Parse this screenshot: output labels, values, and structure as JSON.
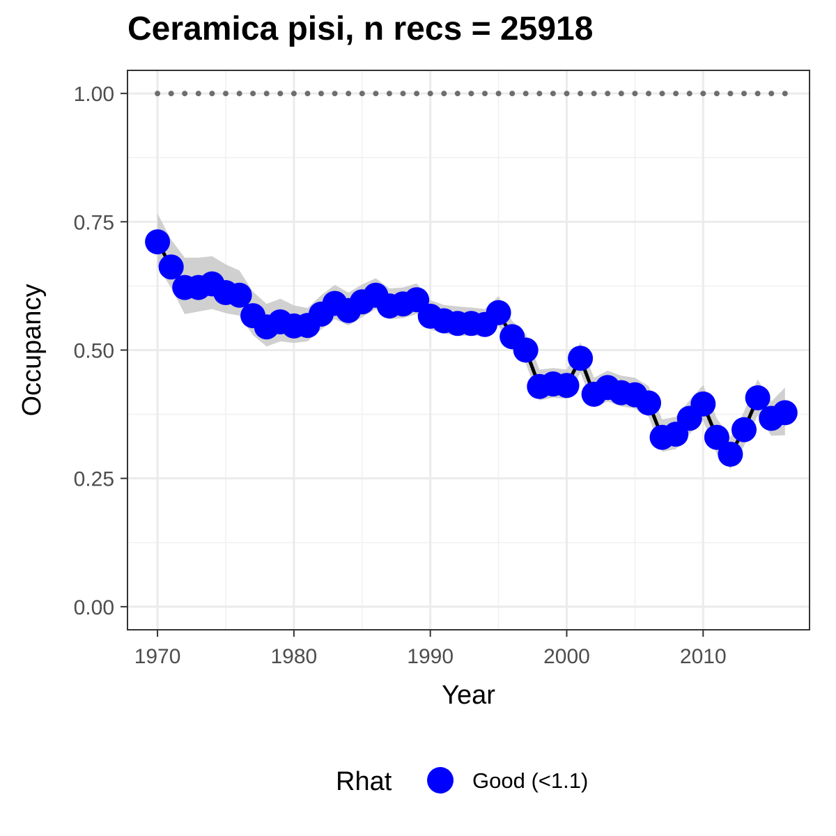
{
  "chart_data": {
    "type": "line",
    "title": "Ceramica pisi, n recs = 25918",
    "xlabel": "Year",
    "ylabel": "Occupancy",
    "xlim": [
      1967.8,
      2017.8
    ],
    "ylim": [
      -0.045,
      1.045
    ],
    "x_ticks": [
      1970,
      1980,
      1990,
      2000,
      2010
    ],
    "x_tick_labels": [
      "1970",
      "1980",
      "1990",
      "2000",
      "2010"
    ],
    "y_ticks": [
      0,
      0.25,
      0.5,
      0.75,
      1.0
    ],
    "y_tick_labels": [
      "0.00",
      "0.25",
      "0.50",
      "0.75",
      "1.00"
    ],
    "grid": true,
    "legend": {
      "title": "Rhat",
      "position": "bottom",
      "entries": [
        "Good (<1.1)"
      ]
    },
    "colors": {
      "points": "#0000ff",
      "line": "#000000",
      "ribbon": "#c8c8c8",
      "reference": "#6e6e6e"
    },
    "years": [
      1970,
      1971,
      1972,
      1973,
      1974,
      1975,
      1976,
      1977,
      1978,
      1979,
      1980,
      1981,
      1982,
      1983,
      1984,
      1985,
      1986,
      1987,
      1988,
      1989,
      1990,
      1991,
      1992,
      1993,
      1994,
      1995,
      1996,
      1997,
      1998,
      1999,
      2000,
      2001,
      2002,
      2003,
      2004,
      2005,
      2006,
      2007,
      2008,
      2009,
      2010,
      2011,
      2012,
      2013,
      2014,
      2015,
      2016
    ],
    "series": [
      {
        "name": "Good (<1.1)",
        "values": [
          0.711,
          0.662,
          0.622,
          0.622,
          0.629,
          0.612,
          0.607,
          0.567,
          0.545,
          0.555,
          0.547,
          0.548,
          0.57,
          0.591,
          0.577,
          0.594,
          0.607,
          0.586,
          0.59,
          0.598,
          0.566,
          0.557,
          0.552,
          0.552,
          0.55,
          0.573,
          0.526,
          0.5,
          0.429,
          0.434,
          0.431,
          0.484,
          0.414,
          0.427,
          0.417,
          0.413,
          0.397,
          0.33,
          0.336,
          0.367,
          0.395,
          0.33,
          0.297,
          0.345,
          0.407,
          0.367,
          0.378
        ],
        "lower": [
          0.663,
          0.621,
          0.57,
          0.575,
          0.58,
          0.572,
          0.567,
          0.529,
          0.507,
          0.517,
          0.514,
          0.517,
          0.54,
          0.56,
          0.548,
          0.564,
          0.58,
          0.56,
          0.562,
          0.57,
          0.54,
          0.532,
          0.528,
          0.528,
          0.527,
          0.548,
          0.5,
          0.474,
          0.402,
          0.407,
          0.405,
          0.456,
          0.388,
          0.4,
          0.39,
          0.386,
          0.37,
          0.302,
          0.307,
          0.336,
          0.363,
          0.298,
          0.268,
          0.313,
          0.373,
          0.333,
          0.334
        ],
        "upper": [
          0.766,
          0.715,
          0.68,
          0.68,
          0.683,
          0.667,
          0.655,
          0.614,
          0.59,
          0.6,
          0.587,
          0.582,
          0.607,
          0.627,
          0.612,
          0.628,
          0.64,
          0.62,
          0.622,
          0.63,
          0.597,
          0.588,
          0.585,
          0.583,
          0.58,
          0.605,
          0.557,
          0.532,
          0.462,
          0.465,
          0.462,
          0.515,
          0.446,
          0.46,
          0.45,
          0.446,
          0.43,
          0.365,
          0.37,
          0.402,
          0.432,
          0.367,
          0.33,
          0.38,
          0.443,
          0.4,
          0.427
        ]
      }
    ],
    "reference_line": {
      "y": 1.0,
      "x_from": 1970,
      "x_to": 2016
    }
  }
}
